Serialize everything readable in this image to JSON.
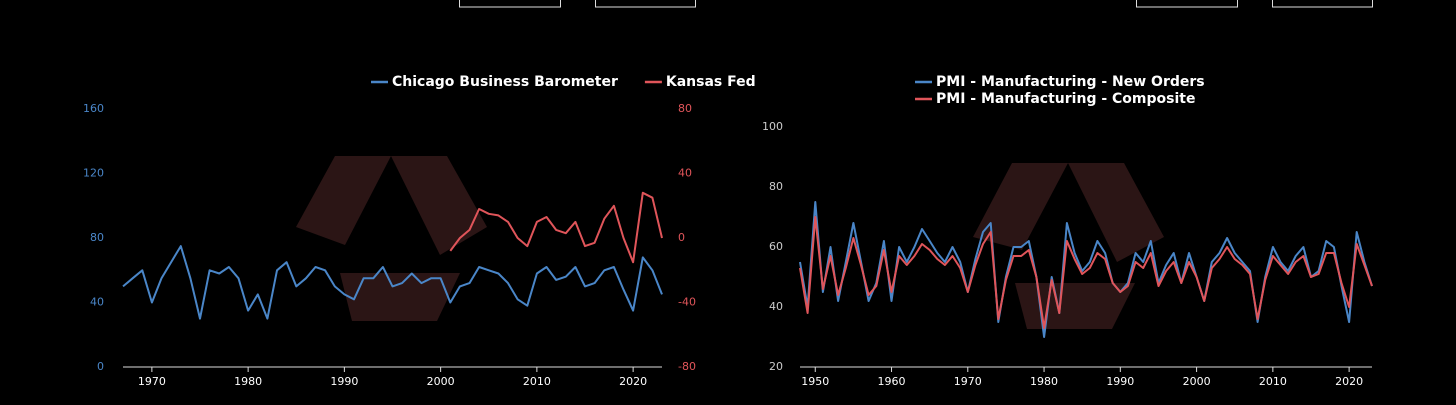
{
  "chart_data": [
    {
      "type": "line",
      "x": [
        1967,
        1968,
        1969,
        1970,
        1971,
        1972,
        1973,
        1974,
        1975,
        1976,
        1977,
        1978,
        1979,
        1980,
        1981,
        1982,
        1983,
        1984,
        1985,
        1986,
        1987,
        1988,
        1989,
        1990,
        1991,
        1992,
        1993,
        1994,
        1995,
        1996,
        1997,
        1998,
        1999,
        2000,
        2001,
        2002,
        2003,
        2004,
        2005,
        2006,
        2007,
        2008,
        2009,
        2010,
        2011,
        2012,
        2013,
        2014,
        2015,
        2016,
        2017,
        2018,
        2019,
        2020,
        2021,
        2022,
        2023
      ],
      "series": [
        {
          "name": "Chicago Business Barometer",
          "color": "#4a86c8",
          "values": [
            50,
            55,
            60,
            40,
            55,
            65,
            75,
            55,
            30,
            60,
            58,
            62,
            55,
            35,
            45,
            30,
            60,
            65,
            50,
            55,
            62,
            60,
            50,
            45,
            42,
            55,
            55,
            62,
            50,
            52,
            58,
            52,
            55,
            55,
            40,
            50,
            52,
            62,
            60,
            58,
            52,
            42,
            38,
            58,
            62,
            54,
            56,
            62,
            50,
            52,
            60,
            62,
            48,
            35,
            68,
            60,
            45
          ]
        },
        {
          "name": "Kansas Fed",
          "color": "#e0555a",
          "axis": "y2",
          "values": [
            null,
            null,
            null,
            null,
            null,
            null,
            null,
            null,
            null,
            null,
            null,
            null,
            null,
            null,
            null,
            null,
            null,
            null,
            null,
            null,
            null,
            null,
            null,
            null,
            null,
            null,
            null,
            null,
            null,
            null,
            null,
            null,
            null,
            null,
            -8,
            0,
            5,
            18,
            15,
            14,
            10,
            0,
            -5,
            10,
            13,
            5,
            3,
            10,
            -5,
            -3,
            12,
            20,
            0,
            -15,
            28,
            25,
            0
          ]
        }
      ],
      "xlim": [
        1967,
        2023
      ],
      "xticks": [
        1970,
        1980,
        1990,
        2000,
        2010,
        2020
      ],
      "ylim": [
        0,
        160
      ],
      "yticks": [
        0,
        40,
        80,
        120,
        160
      ],
      "y2lim": [
        -80,
        80
      ],
      "y2ticks": [
        -80,
        -40,
        0,
        40,
        80
      ]
    },
    {
      "type": "line",
      "x": [
        1948,
        1949,
        1950,
        1951,
        1952,
        1953,
        1954,
        1955,
        1956,
        1957,
        1958,
        1959,
        1960,
        1961,
        1962,
        1963,
        1964,
        1965,
        1966,
        1967,
        1968,
        1969,
        1970,
        1971,
        1972,
        1973,
        1974,
        1975,
        1976,
        1977,
        1978,
        1979,
        1980,
        1981,
        1982,
        1983,
        1984,
        1985,
        1986,
        1987,
        1988,
        1989,
        1990,
        1991,
        1992,
        1993,
        1994,
        1995,
        1996,
        1997,
        1998,
        1999,
        2000,
        2001,
        2002,
        2003,
        2004,
        2005,
        2006,
        2007,
        2008,
        2009,
        2010,
        2011,
        2012,
        2013,
        2014,
        2015,
        2016,
        2017,
        2018,
        2019,
        2020,
        2021,
        2022,
        2023
      ],
      "series": [
        {
          "name": "PMI - Manufacturing - New Orders",
          "color": "#4a86c8",
          "values": [
            55,
            40,
            75,
            45,
            60,
            42,
            55,
            68,
            55,
            42,
            48,
            62,
            42,
            60,
            55,
            60,
            66,
            62,
            58,
            55,
            60,
            55,
            45,
            56,
            65,
            68,
            35,
            50,
            60,
            60,
            62,
            50,
            30,
            50,
            38,
            68,
            58,
            52,
            55,
            62,
            58,
            48,
            45,
            48,
            58,
            55,
            62,
            48,
            54,
            58,
            48,
            58,
            50,
            42,
            55,
            58,
            63,
            58,
            55,
            52,
            35,
            50,
            60,
            55,
            52,
            57,
            60,
            50,
            52,
            62,
            60,
            47,
            35,
            65,
            55,
            47
          ]
        },
        {
          "name": "PMI - Manufacturing - Composite",
          "color": "#e0555a",
          "values": [
            53,
            38,
            70,
            46,
            57,
            44,
            53,
            63,
            54,
            44,
            47,
            59,
            45,
            57,
            54,
            57,
            61,
            59,
            56,
            54,
            57,
            53,
            45,
            54,
            61,
            65,
            36,
            49,
            57,
            57,
            59,
            50,
            33,
            49,
            38,
            62,
            56,
            51,
            53,
            58,
            56,
            48,
            45,
            47,
            55,
            53,
            58,
            47,
            52,
            55,
            48,
            55,
            50,
            42,
            53,
            56,
            60,
            56,
            54,
            51,
            36,
            49,
            57,
            54,
            51,
            55,
            57,
            50,
            51,
            58,
            58,
            48,
            40,
            61,
            54,
            47
          ]
        }
      ],
      "xlim": [
        1948,
        2023
      ],
      "xticks": [
        1950,
        1960,
        1970,
        1980,
        1990,
        2000,
        2010,
        2020
      ],
      "ylim": [
        20,
        100
      ],
      "yticks": [
        20,
        40,
        60,
        80,
        100
      ]
    }
  ]
}
